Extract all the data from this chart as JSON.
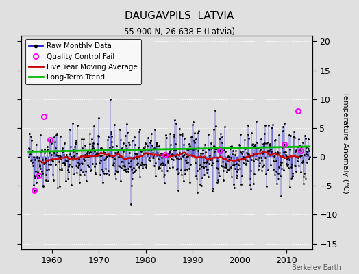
{
  "title": "DAUGAVPILS  LATVIA",
  "subtitle": "55.900 N, 26.638 E (Latvia)",
  "ylabel": "Temperature Anomaly (°C)",
  "ylim": [
    -16,
    21
  ],
  "yticks": [
    -15,
    -10,
    -5,
    0,
    5,
    10,
    15,
    20
  ],
  "xlim": [
    1953.5,
    2015.5
  ],
  "xticks": [
    1960,
    1970,
    1980,
    1990,
    2000,
    2010
  ],
  "xticklabels": [
    "1960",
    "1970",
    "1980",
    "1990",
    "2000",
    "2010"
  ],
  "bg_color": "#e0e0e0",
  "plot_bg_color": "#e0e0e0",
  "raw_line_color": "#0000cc",
  "raw_marker_color": "#000000",
  "moving_avg_color": "#cc0000",
  "trend_color": "#00bb00",
  "qc_fail_color": "#ff00ff",
  "watermark": "Berkeley Earth",
  "seed": 42,
  "n_years": 60,
  "start_year": 1955
}
